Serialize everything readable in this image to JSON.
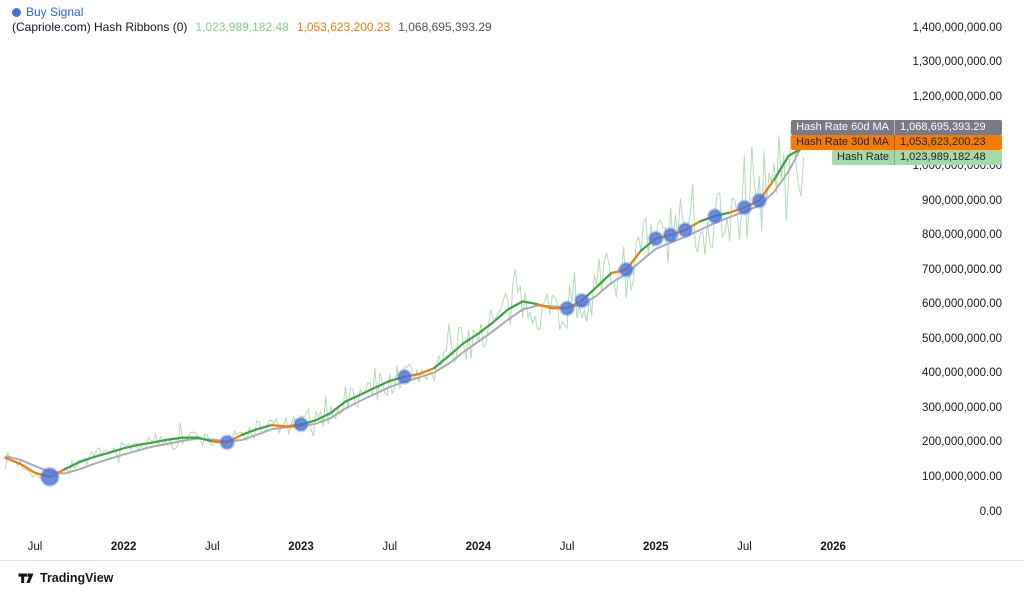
{
  "header": {
    "indicator_title": "(Capriole.com) Hash Ribbons (0)",
    "values": {
      "hash_rate": "1,023,989,182.48",
      "ma30": "1,053,623,200.23",
      "ma60": "1,068,695,393.29"
    }
  },
  "legend": {
    "buy_signal": "Buy Signal"
  },
  "price_labels": {
    "ma60": {
      "name": "Hash Rate 60d MA",
      "value": "1,068,695,393.29"
    },
    "ma30": {
      "name": "Hash Rate 30d MA",
      "value": "1,053,623,200.23"
    },
    "hash": {
      "name": "Hash Rate",
      "value": "1,023,989,182.48"
    }
  },
  "footer": {
    "brand": "TradingView"
  },
  "colors": {
    "hash_rate_raw": "#a8d8ab",
    "ma30_up": "#39a441",
    "ma30_down": "#f57c00",
    "ma60": "#a9acb5",
    "buy_signal": "#4a6fd8",
    "buy_signal_text": "#2962ff",
    "axis_text": "#131722",
    "label_ma60_bg": "#787b86",
    "label_ma30_bg": "#f57c00",
    "label_hash_bg": "#a6d8a8"
  },
  "chart_data": {
    "type": "line",
    "title": "(Capriole.com) Hash Ribbons (0)",
    "x_start_month": "2021-05",
    "x_interval_months": 1,
    "ylim": [
      0,
      1400000000
    ],
    "grid": false,
    "legend_position": "top-left",
    "series": {
      "hash_rate": {
        "name": "Hash Rate",
        "last_value": 1023989182.48,
        "style": "noisy-daily-raw"
      },
      "ma30": {
        "name": "Hash Rate 30d MA",
        "values": [
          155000000,
          138000000,
          112000000,
          100000000,
          122000000,
          143000000,
          158000000,
          170000000,
          183000000,
          193000000,
          200000000,
          208000000,
          214000000,
          214000000,
          203000000,
          200000000,
          222000000,
          238000000,
          250000000,
          246000000,
          252000000,
          264000000,
          285000000,
          318000000,
          338000000,
          358000000,
          378000000,
          390000000,
          398000000,
          415000000,
          450000000,
          487000000,
          515000000,
          548000000,
          585000000,
          608000000,
          600000000,
          588000000,
          588000000,
          610000000,
          650000000,
          690000000,
          700000000,
          755000000,
          790000000,
          800000000,
          815000000,
          840000000,
          855000000,
          865000000,
          880000000,
          900000000,
          960000000,
          1030000000,
          1053623200.23
        ]
      },
      "ma60": {
        "name": "Hash Rate 60d MA",
        "values": [
          160000000,
          150000000,
          132000000,
          115000000,
          110000000,
          122000000,
          138000000,
          152000000,
          165000000,
          177000000,
          188000000,
          196000000,
          205000000,
          211000000,
          208000000,
          203000000,
          207000000,
          222000000,
          238000000,
          244000000,
          247000000,
          254000000,
          270000000,
          298000000,
          320000000,
          340000000,
          360000000,
          376000000,
          388000000,
          402000000,
          428000000,
          462000000,
          492000000,
          522000000,
          555000000,
          585000000,
          596000000,
          594000000,
          590000000,
          598000000,
          625000000,
          662000000,
          688000000,
          725000000,
          760000000,
          778000000,
          795000000,
          815000000,
          835000000,
          852000000,
          868000000,
          885000000,
          925000000,
          985000000,
          1068695393.29
        ]
      }
    },
    "capitulation_ranges": [
      [
        0,
        4
      ],
      [
        14,
        16
      ],
      [
        18,
        20
      ],
      [
        27,
        29
      ],
      [
        36,
        39
      ],
      [
        41,
        43
      ],
      [
        44,
        47
      ],
      [
        49,
        52
      ]
    ],
    "buy_signals": [
      {
        "month": "2021-08",
        "index": 3,
        "radius": 8.5
      },
      {
        "month": "2022-08",
        "index": 15,
        "radius": 6.5
      },
      {
        "month": "2023-01",
        "index": 20,
        "radius": 6.5
      },
      {
        "month": "2023-08",
        "index": 27,
        "radius": 6.5
      },
      {
        "month": "2024-07",
        "index": 38,
        "radius": 6.5
      },
      {
        "month": "2024-08",
        "index": 39,
        "radius": 6.5
      },
      {
        "month": "2024-11",
        "index": 42,
        "radius": 6.5
      },
      {
        "month": "2025-01",
        "index": 44,
        "radius": 6.5
      },
      {
        "month": "2025-02",
        "index": 45,
        "radius": 6.5
      },
      {
        "month": "2025-03",
        "index": 46,
        "radius": 6.5
      },
      {
        "month": "2025-05",
        "index": 48,
        "radius": 6.5
      },
      {
        "month": "2025-07",
        "index": 50,
        "radius": 6.5
      },
      {
        "month": "2025-08",
        "index": 51,
        "radius": 6.5
      }
    ],
    "y_axis": {
      "ticks": [
        {
          "value": 1400000000,
          "label": "1,400,000,000.00"
        },
        {
          "value": 1300000000,
          "label": "1,300,000,000.00"
        },
        {
          "value": 1200000000,
          "label": "1,200,000,000.00"
        },
        {
          "value": 1100000000,
          "label": "1,100,000,000.00"
        },
        {
          "value": 1000000000,
          "label": "1,000,000,000.00"
        },
        {
          "value": 900000000,
          "label": "900,000,000.00"
        },
        {
          "value": 800000000,
          "label": "800,000,000.00"
        },
        {
          "value": 700000000,
          "label": "700,000,000.00"
        },
        {
          "value": 600000000,
          "label": "600,000,000.00"
        },
        {
          "value": 500000000,
          "label": "500,000,000.00"
        },
        {
          "value": 400000000,
          "label": "400,000,000.00"
        },
        {
          "value": 300000000,
          "label": "300,000,000.00"
        },
        {
          "value": 200000000,
          "label": "200,000,000.00"
        },
        {
          "value": 100000000,
          "label": "100,000,000.00"
        },
        {
          "value": 0,
          "label": "0.00"
        }
      ]
    },
    "x_axis": {
      "ticks": [
        {
          "label": "Jul",
          "index": 2,
          "bold": false
        },
        {
          "label": "2022",
          "index": 8,
          "bold": true
        },
        {
          "label": "Jul",
          "index": 14,
          "bold": false
        },
        {
          "label": "2023",
          "index": 20,
          "bold": true
        },
        {
          "label": "Jul",
          "index": 26,
          "bold": false
        },
        {
          "label": "2024",
          "index": 32,
          "bold": true
        },
        {
          "label": "Jul",
          "index": 38,
          "bold": false
        },
        {
          "label": "2025",
          "index": 44,
          "bold": true
        },
        {
          "label": "Jul",
          "index": 50,
          "bold": false
        },
        {
          "label": "2026",
          "index": 56,
          "bold": true
        }
      ]
    },
    "render": {
      "samples_per_month": 6,
      "noise_amplitude_pct": 12,
      "spike_probability": 0.15,
      "spike_factor": 1.8,
      "seed": 7
    }
  }
}
